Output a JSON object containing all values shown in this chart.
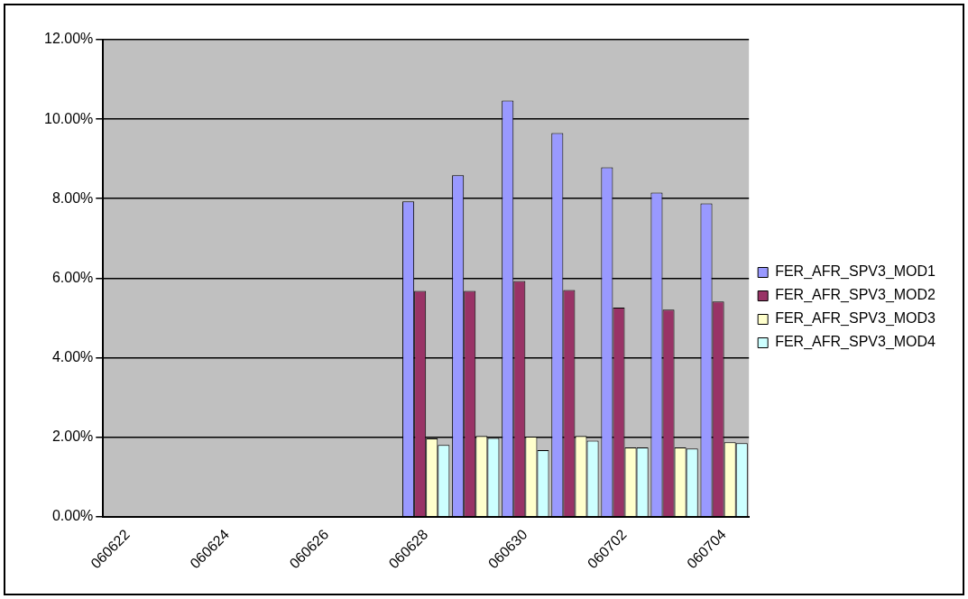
{
  "chart_data": {
    "type": "bar",
    "categories": [
      "060622",
      null,
      "060624",
      null,
      "060626",
      null,
      "060628",
      null,
      "060630",
      null,
      "060702",
      null,
      "060704"
    ],
    "series": [
      {
        "name": "FER_AFR_SPV3_MOD1",
        "color": "#9999ff",
        "values": [
          null,
          null,
          null,
          null,
          null,
          null,
          7.93,
          8.59,
          10.47,
          9.65,
          8.79,
          8.15,
          7.88
        ]
      },
      {
        "name": "FER_AFR_SPV3_MOD2",
        "color": "#993366",
        "values": [
          null,
          null,
          null,
          null,
          null,
          null,
          5.68,
          5.68,
          5.93,
          5.7,
          5.26,
          5.21,
          5.41
        ]
      },
      {
        "name": "FER_AFR_SPV3_MOD3",
        "color": "#ffffcc",
        "values": [
          null,
          null,
          null,
          null,
          null,
          null,
          1.97,
          2.03,
          2.01,
          2.03,
          1.74,
          1.74,
          1.87
        ]
      },
      {
        "name": "FER_AFR_SPV3_MOD4",
        "color": "#ccffff",
        "values": [
          null,
          null,
          null,
          null,
          null,
          null,
          1.8,
          1.98,
          1.67,
          1.91,
          1.74,
          1.71,
          1.85
        ]
      }
    ],
    "ylim": [
      0,
      12
    ],
    "yticks": [
      {
        "value": 0,
        "label": "0.00%"
      },
      {
        "value": 2,
        "label": "2.00%"
      },
      {
        "value": 4,
        "label": "4.00%"
      },
      {
        "value": 6,
        "label": "6.00%"
      },
      {
        "value": 8,
        "label": "8.00%"
      },
      {
        "value": 10,
        "label": "10.00%"
      },
      {
        "value": 12,
        "label": "12.00%"
      }
    ],
    "grid": "y",
    "legend": "right"
  }
}
